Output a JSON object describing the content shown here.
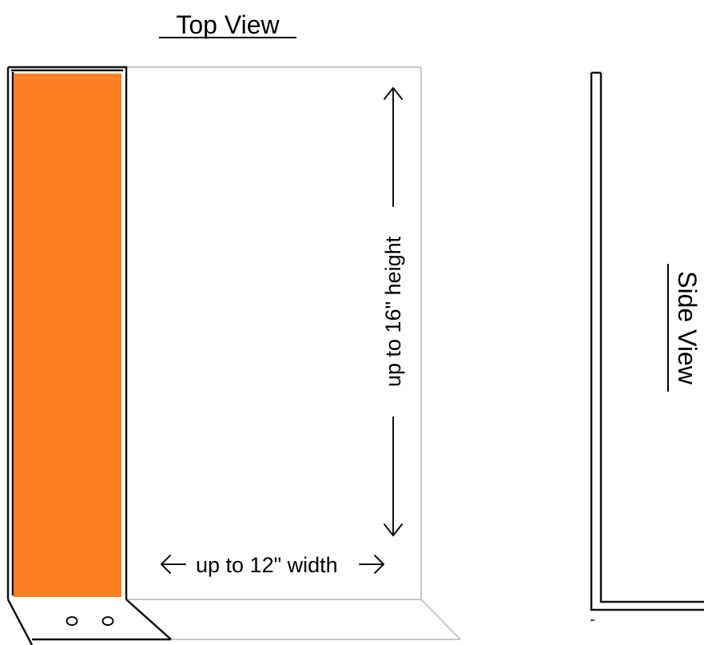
{
  "top_view": {
    "title": "Top View",
    "height_label": "up to 16\" height",
    "width_label": "up to 12\" width"
  },
  "side_view": {
    "title": "Side View"
  },
  "colors": {
    "orange_panel": "#ff7f24",
    "outline_dark": "#111111",
    "outline_light": "#c8c8c8",
    "text": "#000000"
  }
}
